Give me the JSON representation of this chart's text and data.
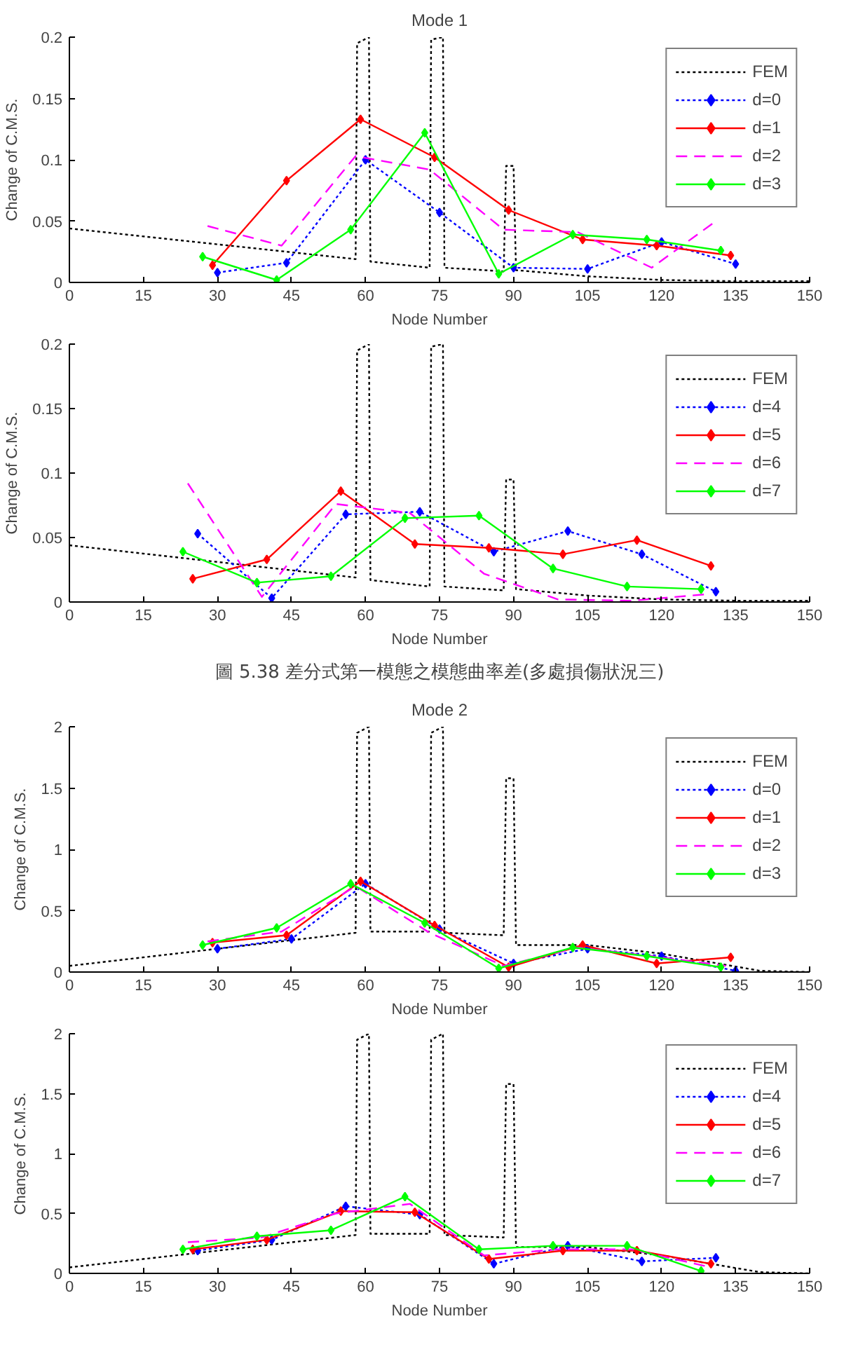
{
  "chart_data": [
    {
      "type": "line",
      "title": "Mode 1",
      "xlabel": "Node Number",
      "ylabel": "Change of C.M.S.",
      "xlim": [
        0,
        150
      ],
      "xticks": [
        0,
        15,
        30,
        45,
        60,
        75,
        90,
        105,
        120,
        135,
        150
      ],
      "ylim": [
        0,
        0.2
      ],
      "yticks": [
        0,
        0.05,
        0.1,
        0.15,
        0.2
      ],
      "grid": false,
      "legend": "top right",
      "series": [
        {
          "name": "FEM",
          "color": "#000000",
          "line_style": "dotted",
          "marker": "none",
          "x": [
            0,
            58,
            58.3,
            60.7,
            61,
            73,
            73.3,
            75.7,
            76,
            88,
            88.5,
            90,
            90.5,
            105,
            120,
            135,
            150
          ],
          "values": [
            0.044,
            0.019,
            0.195,
            0.2,
            0.017,
            0.012,
            0.198,
            0.2,
            0.012,
            0.009,
            0.095,
            0.095,
            0.01,
            0.005,
            0.002,
            0.001,
            0.001
          ]
        },
        {
          "name": "d=0",
          "color": "#0000ff",
          "line_style": "dotted",
          "marker": "diamond",
          "x": [
            30,
            44,
            60,
            75,
            90,
            105,
            120,
            135
          ],
          "values": [
            0.008,
            0.016,
            0.1,
            0.057,
            0.012,
            0.011,
            0.033,
            0.015
          ]
        },
        {
          "name": "d=1",
          "color": "#ff0000",
          "line_style": "solid",
          "marker": "diamond",
          "x": [
            29,
            44,
            59,
            74,
            89,
            104,
            119,
            134
          ],
          "values": [
            0.014,
            0.083,
            0.133,
            0.102,
            0.059,
            0.035,
            0.03,
            0.022
          ]
        },
        {
          "name": "d=2",
          "color": "#ff00ff",
          "line_style": "dashed",
          "marker": "none",
          "x": [
            28,
            43,
            58,
            73,
            88,
            103,
            118,
            131
          ],
          "values": [
            0.046,
            0.03,
            0.103,
            0.092,
            0.043,
            0.041,
            0.012,
            0.05
          ]
        },
        {
          "name": "d=3",
          "color": "#00ff00",
          "line_style": "solid",
          "marker": "diamond",
          "x": [
            27,
            42,
            57,
            72,
            87,
            102,
            117,
            132
          ],
          "values": [
            0.021,
            0.002,
            0.043,
            0.122,
            0.007,
            0.039,
            0.035,
            0.026
          ]
        }
      ]
    },
    {
      "type": "line",
      "xlabel": "Node Number",
      "ylabel": "Change of C.M.S.",
      "xlim": [
        0,
        150
      ],
      "xticks": [
        0,
        15,
        30,
        45,
        60,
        75,
        90,
        105,
        120,
        135,
        150
      ],
      "ylim": [
        0,
        0.2
      ],
      "yticks": [
        0,
        0.05,
        0.1,
        0.15,
        0.2
      ],
      "grid": false,
      "legend": "top right",
      "annotations": [
        "圖 5.38 差分式第一模態之模態曲率差(多處損傷狀況三)"
      ],
      "series": [
        {
          "name": "FEM",
          "color": "#000000",
          "line_style": "dotted",
          "marker": "none",
          "x": [
            0,
            58,
            58.3,
            60.7,
            61,
            73,
            73.3,
            75.7,
            76,
            88,
            88.5,
            90,
            90.5,
            105,
            120,
            135,
            150
          ],
          "values": [
            0.044,
            0.019,
            0.195,
            0.2,
            0.017,
            0.012,
            0.198,
            0.2,
            0.012,
            0.009,
            0.095,
            0.095,
            0.01,
            0.005,
            0.002,
            0.001,
            0.001
          ]
        },
        {
          "name": "d=4",
          "color": "#0000ff",
          "line_style": "dotted",
          "marker": "diamond",
          "x": [
            26,
            41,
            56,
            71,
            86,
            101,
            116,
            131
          ],
          "values": [
            0.053,
            0.003,
            0.068,
            0.07,
            0.039,
            0.055,
            0.037,
            0.008
          ]
        },
        {
          "name": "d=5",
          "color": "#ff0000",
          "line_style": "solid",
          "marker": "diamond",
          "x": [
            25,
            40,
            55,
            70,
            85,
            100,
            115,
            130
          ],
          "values": [
            0.018,
            0.033,
            0.086,
            0.045,
            0.042,
            0.037,
            0.048,
            0.028
          ]
        },
        {
          "name": "d=6",
          "color": "#ff00ff",
          "line_style": "dashed",
          "marker": "none",
          "x": [
            24,
            39,
            54,
            69,
            84,
            99,
            114,
            129
          ],
          "values": [
            0.092,
            0.004,
            0.076,
            0.069,
            0.022,
            0.002,
            0.001,
            0.006
          ]
        },
        {
          "name": "d=7",
          "color": "#00ff00",
          "line_style": "solid",
          "marker": "diamond",
          "x": [
            23,
            38,
            53,
            68,
            83,
            98,
            113,
            128
          ],
          "values": [
            0.039,
            0.015,
            0.02,
            0.065,
            0.067,
            0.026,
            0.012,
            0.01
          ]
        }
      ]
    },
    {
      "type": "line",
      "title": "Mode 2",
      "xlabel": "Node Number",
      "ylabel": "Change of C.M.S.",
      "xlim": [
        0,
        150
      ],
      "xticks": [
        0,
        15,
        30,
        45,
        60,
        75,
        90,
        105,
        120,
        135,
        150
      ],
      "ylim": [
        0,
        2
      ],
      "yticks": [
        0,
        0.5,
        1,
        1.5,
        2
      ],
      "grid": false,
      "legend": "top right",
      "series": [
        {
          "name": "FEM",
          "color": "#000000",
          "line_style": "dotted",
          "marker": "none",
          "x": [
            0,
            58,
            58.3,
            60.7,
            61,
            73,
            73.3,
            75.7,
            76,
            88,
            88.5,
            90,
            90.5,
            105,
            120,
            140,
            150
          ],
          "values": [
            0.05,
            0.32,
            1.95,
            2.0,
            0.33,
            0.33,
            1.95,
            2.0,
            0.32,
            0.3,
            1.58,
            1.58,
            0.22,
            0.22,
            0.15,
            0.01,
            0.0
          ]
        },
        {
          "name": "d=0",
          "color": "#0000ff",
          "line_style": "dotted",
          "marker": "diamond",
          "x": [
            30,
            45,
            60,
            75,
            90,
            105,
            120,
            135
          ],
          "values": [
            0.19,
            0.27,
            0.72,
            0.35,
            0.07,
            0.19,
            0.13,
            0.01
          ]
        },
        {
          "name": "d=1",
          "color": "#ff0000",
          "line_style": "solid",
          "marker": "diamond",
          "x": [
            29,
            44,
            59,
            74,
            89,
            104,
            119,
            134
          ],
          "values": [
            0.24,
            0.3,
            0.74,
            0.38,
            0.04,
            0.22,
            0.07,
            0.12
          ]
        },
        {
          "name": "d=2",
          "color": "#ff00ff",
          "line_style": "dashed",
          "marker": "none",
          "x": [
            28,
            43,
            58,
            73,
            88,
            103,
            118,
            133
          ],
          "values": [
            0.25,
            0.33,
            0.7,
            0.32,
            0.05,
            0.2,
            0.13,
            0.05
          ]
        },
        {
          "name": "d=3",
          "color": "#00ff00",
          "line_style": "solid",
          "marker": "diamond",
          "x": [
            27,
            42,
            57,
            72,
            87,
            102,
            117,
            132
          ],
          "values": [
            0.22,
            0.36,
            0.72,
            0.4,
            0.03,
            0.2,
            0.13,
            0.04
          ]
        }
      ]
    },
    {
      "type": "line",
      "xlabel": "Node Number",
      "ylabel": "Change of C.M.S.",
      "xlim": [
        0,
        150
      ],
      "xticks": [
        0,
        15,
        30,
        45,
        60,
        75,
        90,
        105,
        120,
        135,
        150
      ],
      "ylim": [
        0,
        2
      ],
      "yticks": [
        0,
        0.5,
        1,
        1.5,
        2
      ],
      "grid": false,
      "legend": "top right",
      "series": [
        {
          "name": "FEM",
          "color": "#000000",
          "line_style": "dotted",
          "marker": "none",
          "x": [
            0,
            58,
            58.3,
            60.7,
            61,
            73,
            73.3,
            75.7,
            76,
            88,
            88.5,
            90,
            90.5,
            105,
            120,
            140,
            150
          ],
          "values": [
            0.05,
            0.32,
            1.95,
            2.0,
            0.33,
            0.33,
            1.95,
            2.0,
            0.32,
            0.3,
            1.58,
            1.58,
            0.22,
            0.22,
            0.15,
            0.01,
            0.0
          ]
        },
        {
          "name": "d=4",
          "color": "#0000ff",
          "line_style": "dotted",
          "marker": "diamond",
          "x": [
            26,
            41,
            56,
            71,
            86,
            101,
            116,
            131
          ],
          "values": [
            0.19,
            0.28,
            0.56,
            0.49,
            0.08,
            0.23,
            0.1,
            0.13
          ]
        },
        {
          "name": "d=5",
          "color": "#ff0000",
          "line_style": "solid",
          "marker": "diamond",
          "x": [
            25,
            40,
            55,
            70,
            85,
            100,
            115,
            130
          ],
          "values": [
            0.2,
            0.28,
            0.52,
            0.51,
            0.12,
            0.19,
            0.19,
            0.08
          ]
        },
        {
          "name": "d=6",
          "color": "#ff00ff",
          "line_style": "dashed",
          "marker": "none",
          "x": [
            24,
            39,
            54,
            69,
            84,
            99,
            114,
            129
          ],
          "values": [
            0.26,
            0.3,
            0.5,
            0.58,
            0.15,
            0.2,
            0.2,
            0.06
          ]
        },
        {
          "name": "d=7",
          "color": "#00ff00",
          "line_style": "solid",
          "marker": "diamond",
          "x": [
            23,
            38,
            53,
            68,
            83,
            98,
            113,
            128
          ],
          "values": [
            0.2,
            0.31,
            0.36,
            0.64,
            0.2,
            0.23,
            0.23,
            0.02
          ]
        }
      ]
    }
  ]
}
